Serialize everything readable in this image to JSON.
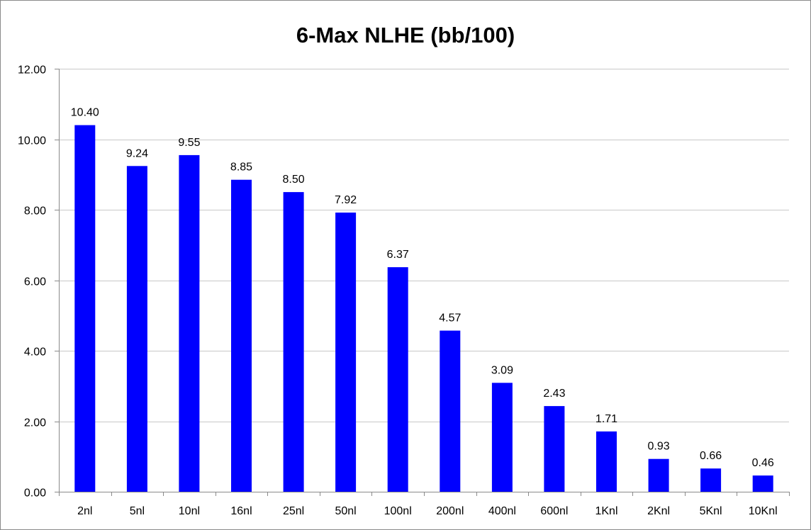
{
  "chart_data": {
    "type": "bar",
    "title": "6-Max NLHE (bb/100)",
    "xlabel": "",
    "ylabel": "",
    "categories": [
      "2nl",
      "5nl",
      "10nl",
      "16nl",
      "25nl",
      "50nl",
      "100nl",
      "200nl",
      "400nl",
      "600nl",
      "1Knl",
      "2Knl",
      "5Knl",
      "10Knl"
    ],
    "values": [
      10.4,
      9.24,
      9.55,
      8.85,
      8.5,
      7.92,
      6.37,
      4.57,
      3.09,
      2.43,
      1.71,
      0.93,
      0.66,
      0.46
    ],
    "value_labels": [
      "10.40",
      "9.24",
      "9.55",
      "8.85",
      "8.50",
      "7.92",
      "6.37",
      "4.57",
      "3.09",
      "2.43",
      "1.71",
      "0.93",
      "0.66",
      "0.46"
    ],
    "ylim": [
      0,
      12
    ],
    "y_ticks": [
      0,
      2,
      4,
      6,
      8,
      10,
      12
    ],
    "y_tick_labels": [
      "0.00",
      "2.00",
      "4.00",
      "6.00",
      "8.00",
      "10.00",
      "12.00"
    ],
    "grid": true,
    "legend": "none",
    "bar_color": "#0000ff"
  }
}
